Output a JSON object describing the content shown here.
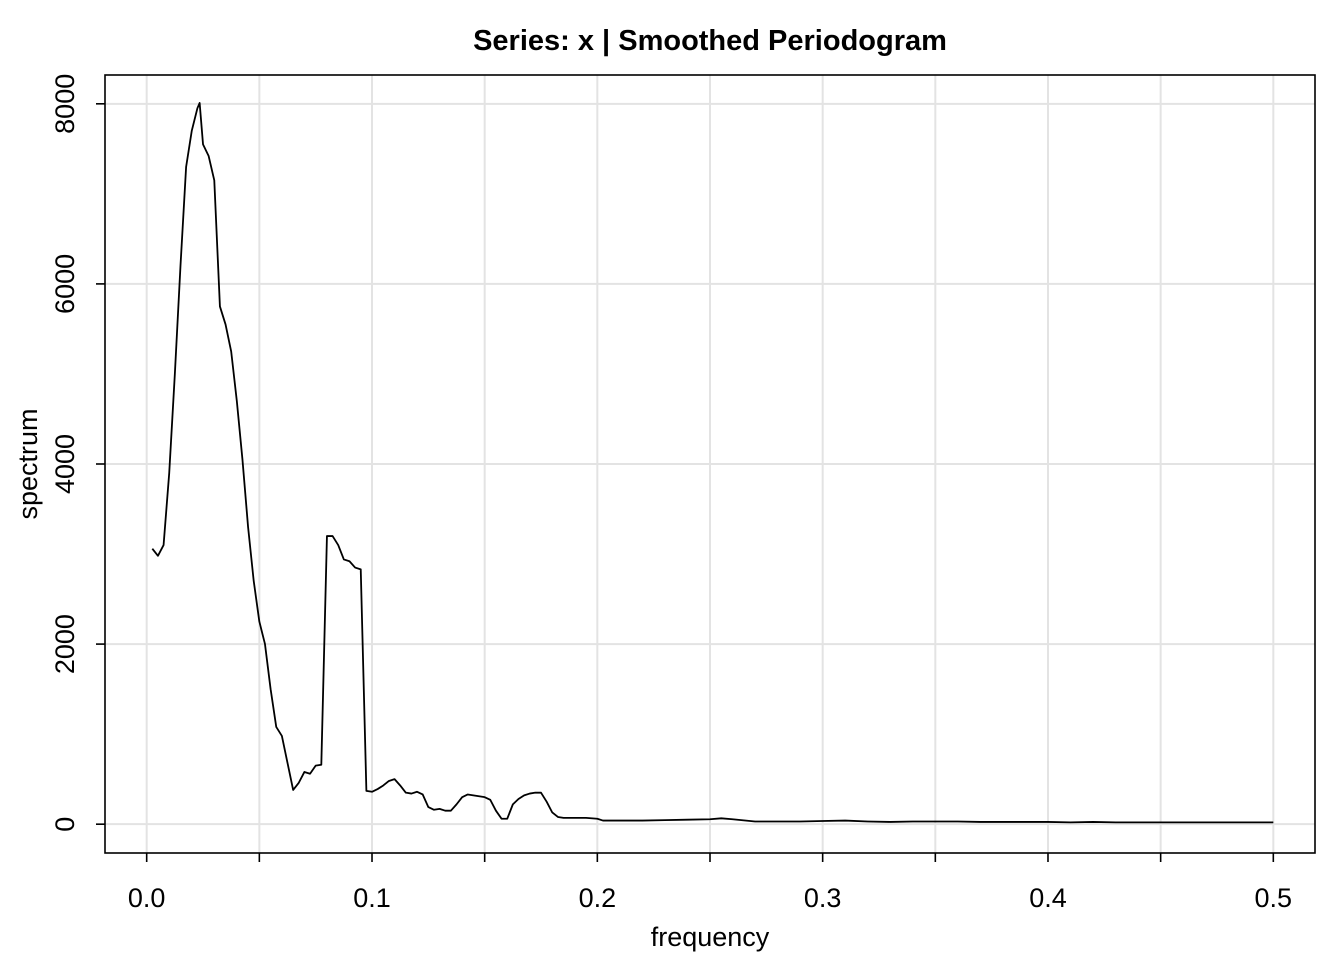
{
  "chart_data": {
    "type": "line",
    "title": "Series: x  |  Smoothed Periodogram",
    "xlabel": "frequency",
    "ylabel": "spectrum",
    "xlim": [
      -0.0185,
      0.5185
    ],
    "ylim": [
      -320,
      8320
    ],
    "x_ticks": [
      {
        "value": 0.0,
        "label": "0.0"
      },
      {
        "value": 0.1,
        "label": "0.1"
      },
      {
        "value": 0.2,
        "label": "0.2"
      },
      {
        "value": 0.3,
        "label": "0.3"
      },
      {
        "value": 0.4,
        "label": "0.4"
      },
      {
        "value": 0.5,
        "label": "0.5"
      }
    ],
    "x_minor_ticks": [
      0.05,
      0.15,
      0.25,
      0.35,
      0.45
    ],
    "y_ticks": [
      {
        "value": 0,
        "label": "0"
      },
      {
        "value": 2000,
        "label": "2000"
      },
      {
        "value": 4000,
        "label": "4000"
      },
      {
        "value": 6000,
        "label": "6000"
      },
      {
        "value": 8000,
        "label": "8000"
      }
    ],
    "grid": true,
    "grid_x": [
      0.0,
      0.05,
      0.1,
      0.15,
      0.2,
      0.25,
      0.3,
      0.35,
      0.4,
      0.45,
      0.5
    ],
    "grid_y": [
      0,
      2000,
      4000,
      6000,
      8000
    ],
    "colors": {
      "line": "#000000",
      "grid": "#e3e3e3",
      "background": "#ffffff"
    },
    "series": [
      {
        "x": [
          0.0025,
          0.005,
          0.0075,
          0.01,
          0.0125,
          0.015,
          0.0175,
          0.02,
          0.0225,
          0.0235,
          0.025,
          0.0275,
          0.03,
          0.0325,
          0.035,
          0.0375,
          0.04,
          0.0425,
          0.045,
          0.0475,
          0.05,
          0.0525,
          0.055,
          0.0575,
          0.06,
          0.0625,
          0.065,
          0.0675,
          0.07,
          0.0725,
          0.075,
          0.0775,
          0.08,
          0.0825,
          0.085,
          0.0875,
          0.09,
          0.0925,
          0.095,
          0.0975,
          0.1,
          0.1025,
          0.105,
          0.1075,
          0.11,
          0.1125,
          0.115,
          0.1175,
          0.12,
          0.1225,
          0.125,
          0.1275,
          0.13,
          0.1325,
          0.135,
          0.1375,
          0.14,
          0.1425,
          0.145,
          0.1475,
          0.15,
          0.1525,
          0.155,
          0.1575,
          0.16,
          0.1625,
          0.165,
          0.1675,
          0.17,
          0.1725,
          0.175,
          0.1775,
          0.18,
          0.1825,
          0.185,
          0.19,
          0.195,
          0.2,
          0.2025,
          0.21,
          0.22,
          0.23,
          0.24,
          0.25,
          0.255,
          0.26,
          0.27,
          0.28,
          0.29,
          0.3,
          0.31,
          0.32,
          0.33,
          0.34,
          0.35,
          0.36,
          0.37,
          0.38,
          0.39,
          0.4,
          0.41,
          0.42,
          0.43,
          0.44,
          0.45,
          0.46,
          0.47,
          0.48,
          0.49,
          0.5
        ],
        "y": [
          3060,
          2980,
          3100,
          3900,
          5000,
          6200,
          7300,
          7700,
          7950,
          8010,
          7550,
          7420,
          7150,
          5750,
          5550,
          5250,
          4700,
          4050,
          3300,
          2700,
          2250,
          2000,
          1500,
          1080,
          980,
          680,
          380,
          460,
          580,
          560,
          650,
          660,
          3200,
          3200,
          3100,
          2940,
          2920,
          2850,
          2830,
          370,
          360,
          390,
          430,
          480,
          500,
          430,
          350,
          340,
          360,
          330,
          190,
          160,
          170,
          150,
          150,
          220,
          300,
          330,
          320,
          310,
          300,
          270,
          150,
          60,
          60,
          220,
          280,
          320,
          340,
          350,
          350,
          250,
          130,
          80,
          70,
          70,
          70,
          60,
          40,
          40,
          40,
          45,
          50,
          55,
          65,
          55,
          30,
          30,
          30,
          35,
          40,
          30,
          25,
          30,
          30,
          30,
          25,
          25,
          25,
          25,
          20,
          25,
          20,
          20,
          20,
          20,
          20,
          20,
          20,
          20
        ]
      }
    ]
  }
}
